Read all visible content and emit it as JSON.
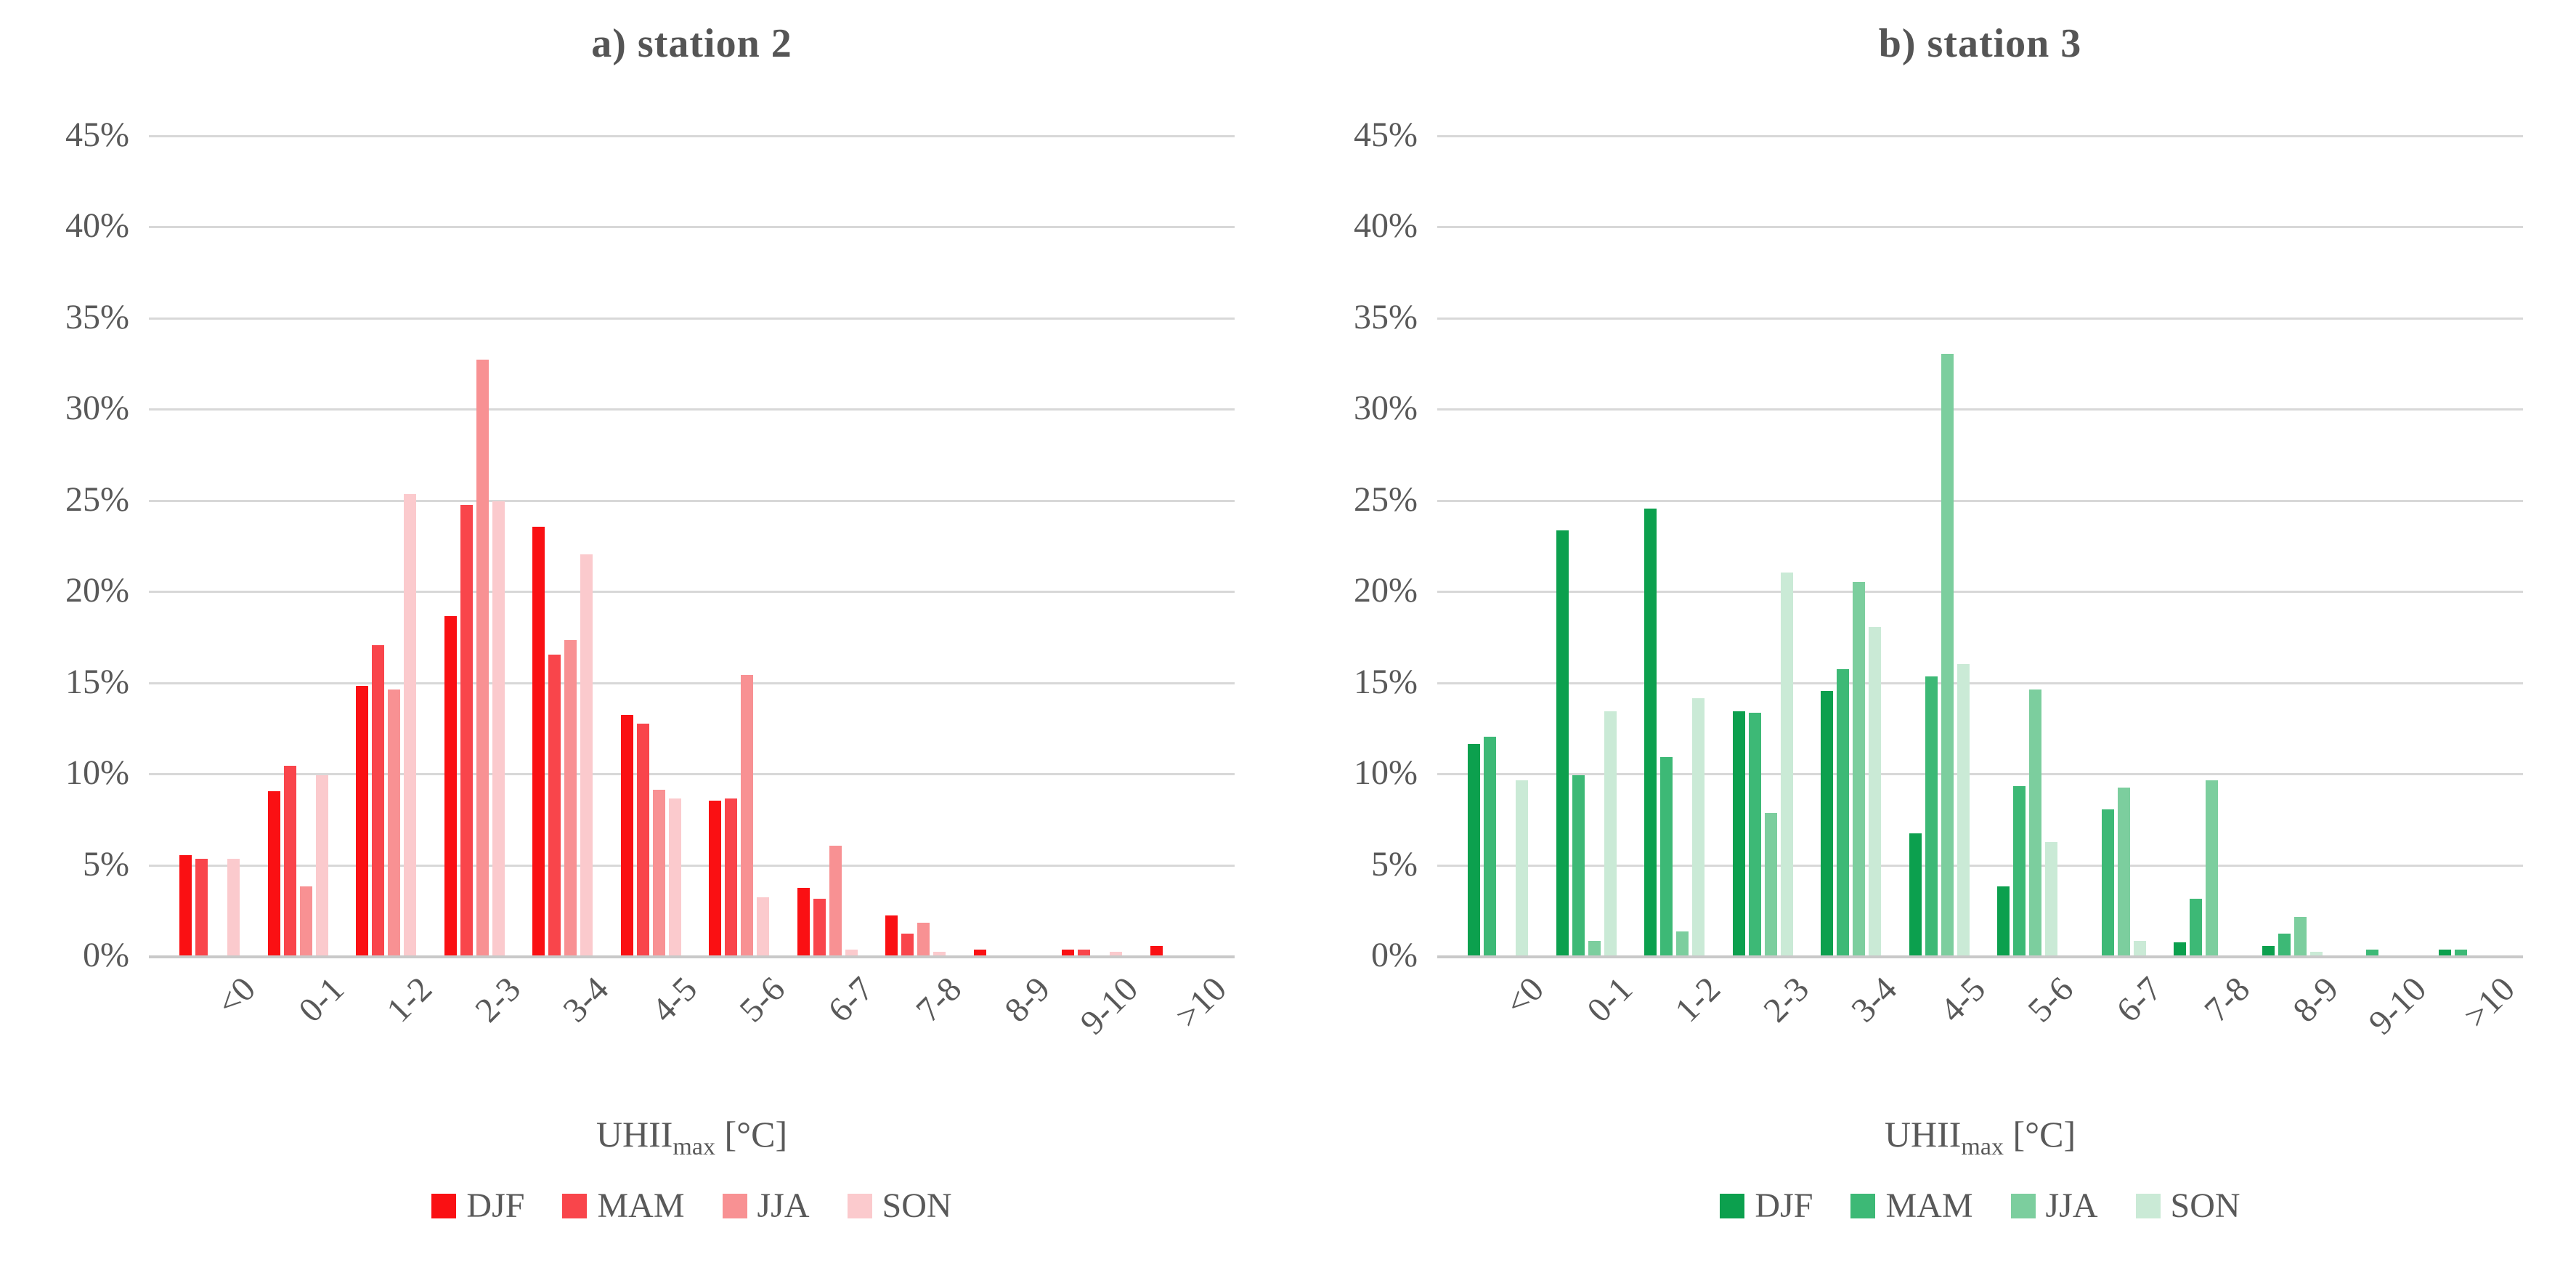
{
  "chart_data": [
    {
      "type": "bar",
      "title": "a) station 2",
      "x_axis_title": {
        "prefix": "UHII",
        "subscript": "max",
        "suffix": " [°C]"
      },
      "categories": [
        "<0",
        "0-1",
        "1-2",
        "2-3",
        "3-4",
        "4-5",
        "5-6",
        "6-7",
        "7-8",
        "8-9",
        "9-10",
        ">10"
      ],
      "y_ticks": [
        "45%",
        "40%",
        "35%",
        "30%",
        "25%",
        "20%",
        "15%",
        "10%",
        "5%",
        "0%"
      ],
      "ylim": [
        0,
        45
      ],
      "unit": "%",
      "grid": true,
      "legend_position": "bottom",
      "series": [
        {
          "name": "DJF",
          "color": "#FA1013",
          "values": [
            5.5,
            9.0,
            14.8,
            18.6,
            23.5,
            13.2,
            8.5,
            3.7,
            2.2,
            0.3,
            0.3,
            0.5
          ]
        },
        {
          "name": "MAM",
          "color": "#F9454B",
          "values": [
            5.3,
            10.4,
            17.0,
            24.7,
            16.5,
            12.7,
            8.6,
            3.1,
            1.2,
            0.0,
            0.3,
            0.0
          ]
        },
        {
          "name": "JJA",
          "color": "#F89193",
          "values": [
            0.0,
            3.8,
            14.6,
            32.7,
            17.3,
            9.1,
            15.4,
            6.0,
            1.8,
            0.0,
            0.0,
            0.0
          ]
        },
        {
          "name": "SON",
          "color": "#FBCACD",
          "values": [
            5.3,
            9.9,
            25.3,
            24.9,
            22.0,
            8.6,
            3.2,
            0.3,
            0.2,
            0.0,
            0.2,
            0.0
          ]
        }
      ]
    },
    {
      "type": "bar",
      "title": "b) station 3",
      "x_axis_title": {
        "prefix": "UHII",
        "subscript": "max",
        "suffix": " [°C]"
      },
      "categories": [
        "<0",
        "0-1",
        "1-2",
        "2-3",
        "3-4",
        "4-5",
        "5-6",
        "6-7",
        "7-8",
        "8-9",
        "9-10",
        ">10"
      ],
      "y_ticks": [
        "45%",
        "40%",
        "35%",
        "30%",
        "25%",
        "20%",
        "15%",
        "10%",
        "5%",
        "0%"
      ],
      "ylim": [
        0,
        45
      ],
      "unit": "%",
      "grid": true,
      "legend_position": "bottom",
      "series": [
        {
          "name": "DJF",
          "color": "#0CA04E",
          "values": [
            11.6,
            23.3,
            24.5,
            13.4,
            14.5,
            6.7,
            3.8,
            0.0,
            0.7,
            0.5,
            0.0,
            0.3
          ]
        },
        {
          "name": "MAM",
          "color": "#3DB976",
          "values": [
            12.0,
            9.9,
            10.9,
            13.3,
            15.7,
            15.3,
            9.3,
            8.0,
            3.1,
            1.2,
            0.3,
            0.3
          ]
        },
        {
          "name": "JJA",
          "color": "#7CCE9E",
          "values": [
            0.0,
            0.8,
            1.3,
            7.8,
            20.5,
            33.0,
            14.6,
            9.2,
            9.6,
            2.1,
            0.0,
            0.0
          ]
        },
        {
          "name": "SON",
          "color": "#CAEAD6",
          "values": [
            9.6,
            13.4,
            14.1,
            21.0,
            18.0,
            16.0,
            6.2,
            0.8,
            0.0,
            0.2,
            0.0,
            0.0
          ]
        }
      ]
    }
  ],
  "style": {
    "grid_color": "#d8d8d8",
    "baseline_color": "#c9c9c9",
    "text_color": "#595959"
  }
}
